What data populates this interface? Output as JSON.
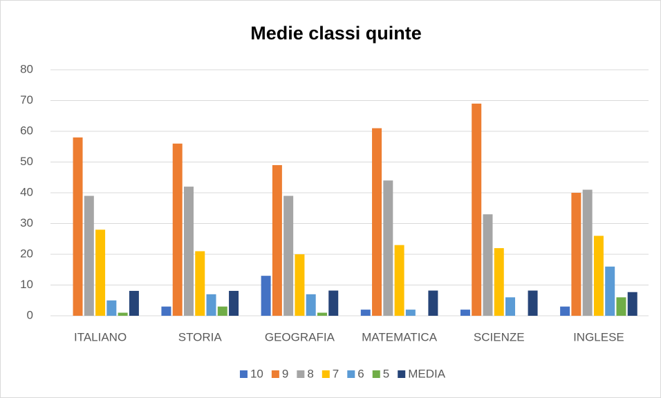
{
  "chart_data": {
    "type": "bar",
    "title": "Medie classi quinte",
    "categories": [
      "ITALIANO",
      "STORIA",
      "GEOGRAFIA",
      "MATEMATICA",
      "SCIENZE",
      "INGLESE"
    ],
    "series": [
      {
        "name": "10",
        "color": "#4472c4",
        "values": [
          0,
          3,
          13,
          2,
          2,
          3
        ]
      },
      {
        "name": "9",
        "color": "#ed7d31",
        "values": [
          58,
          56,
          49,
          61,
          69,
          40
        ]
      },
      {
        "name": "8",
        "color": "#a5a5a5",
        "values": [
          39,
          42,
          39,
          44,
          33,
          41
        ]
      },
      {
        "name": "7",
        "color": "#ffc000",
        "values": [
          28,
          21,
          20,
          23,
          22,
          26
        ]
      },
      {
        "name": "6",
        "color": "#5b9bd5",
        "values": [
          5,
          7,
          7,
          2,
          6,
          16
        ]
      },
      {
        "name": "5",
        "color": "#70ad47",
        "values": [
          1,
          3,
          1,
          0,
          0,
          6
        ]
      },
      {
        "name": "MEDIA",
        "color": "#264478",
        "values": [
          8.1,
          8.1,
          8.2,
          8.2,
          8.2,
          7.7
        ]
      }
    ],
    "ylim": [
      0,
      80
    ],
    "yticks": [
      0,
      10,
      20,
      30,
      40,
      50,
      60,
      70,
      80
    ],
    "grid": true,
    "legend": "bottom"
  }
}
